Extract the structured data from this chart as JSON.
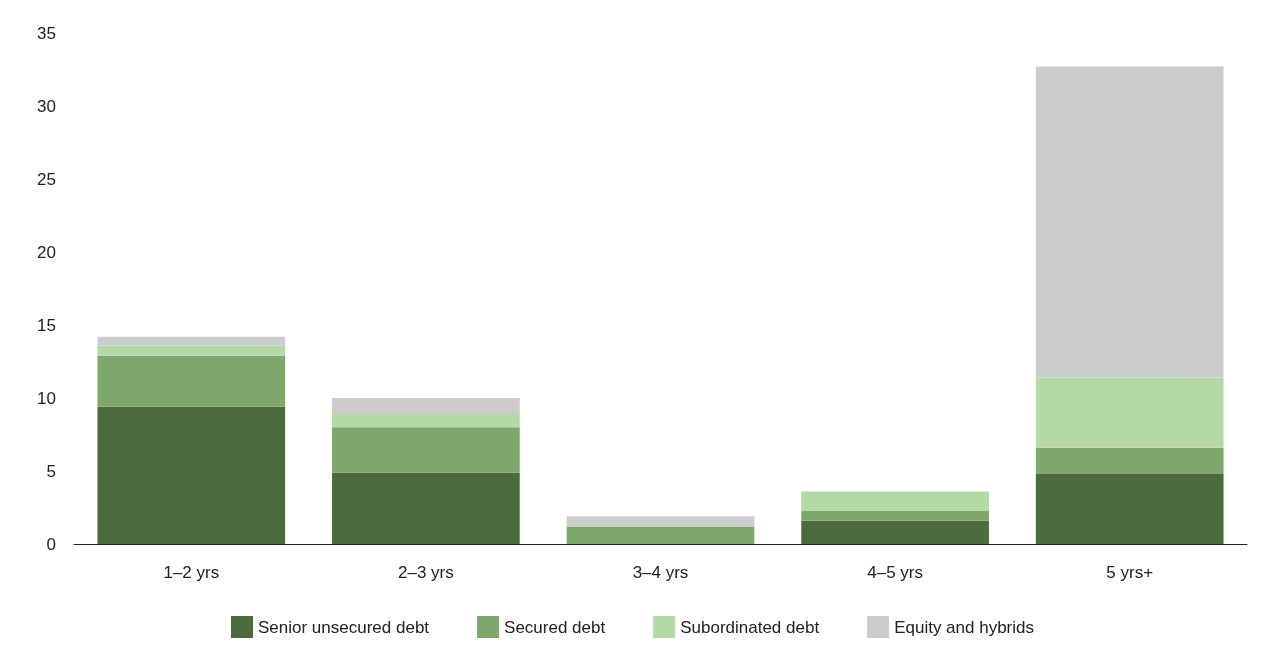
{
  "chart_data": {
    "type": "bar",
    "stacked": true,
    "categories": [
      "1–2 yrs",
      "2–3 yrs",
      "3–4 yrs",
      "4–5 yrs",
      "5 yrs+"
    ],
    "series": [
      {
        "name": "Senior unsecured debt",
        "color": "#4a6b3c",
        "values": [
          9.4,
          4.9,
          0,
          1.6,
          4.8
        ]
      },
      {
        "name": "Secured debt",
        "color": "#7ea86b",
        "values": [
          3.5,
          3.1,
          1.2,
          0.7,
          1.8
        ]
      },
      {
        "name": "Subordinated debt",
        "color": "#b4d9a6",
        "values": [
          0.7,
          0.9,
          0,
          1.3,
          4.8
        ]
      },
      {
        "name": "Equity and hybrids",
        "color": "#cccccc",
        "values": [
          0.6,
          1.1,
          0.7,
          0,
          21.3
        ]
      }
    ],
    "ylim": [
      0,
      35
    ],
    "yticks": [
      0,
      5,
      10,
      15,
      20,
      25,
      30,
      35
    ],
    "grid": false,
    "legend": "bottom"
  }
}
